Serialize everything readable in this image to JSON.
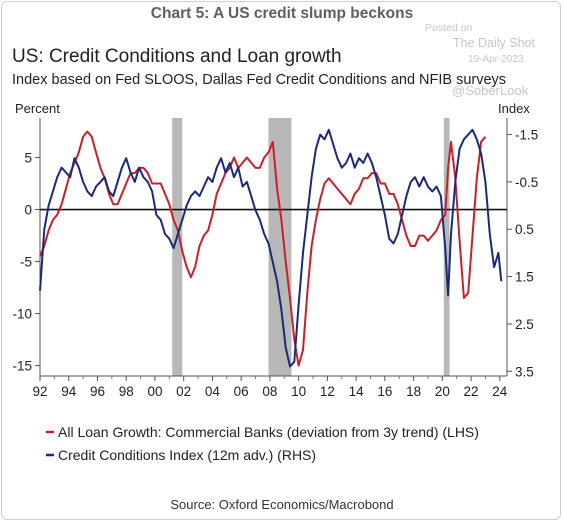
{
  "header": {
    "top_title": "Chart 5: A US credit slump beckons"
  },
  "watermark": {
    "line1": "Posted on",
    "line2": "The Daily Shot",
    "line3": "19-Apr-2023",
    "line4": "@SoberLook"
  },
  "source": "Source: Oxford Economics/Macrobond",
  "chart_data": {
    "type": "line",
    "title": "US: Credit Conditions and Loan growth",
    "subtitle": "Index based on Fed SLOOS, Dallas Fed Credit Conditions and NFIB surveys",
    "y_left_label": "Percent",
    "y_right_label": "Index",
    "x_range": [
      1992,
      2024.5
    ],
    "x_ticks": [
      "92",
      "94",
      "96",
      "98",
      "00",
      "02",
      "04",
      "06",
      "08",
      "10",
      "12",
      "14",
      "16",
      "18",
      "20",
      "22",
      "24"
    ],
    "y_left_range": [
      -16,
      8.8
    ],
    "y_left_ticks": [
      5,
      0,
      -5,
      -10,
      -15
    ],
    "y_right_range": [
      -1.85,
      3.6
    ],
    "y_right_ticks": [
      -1.5,
      -0.5,
      0.5,
      1.5,
      2.5,
      3.5
    ],
    "y_right_inverted": true,
    "recessions": [
      [
        2001.2,
        2001.9
      ],
      [
        2007.9,
        2009.5
      ],
      [
        2020.1,
        2020.5
      ]
    ],
    "legend_position": "bottom",
    "colors": {
      "red": "#c8202a",
      "blue": "#1b2a78",
      "recession": "#b8b8b8"
    },
    "series": [
      {
        "name": "All Loan Growth: Commercial Banks (deviation from 3y trend) (LHS)",
        "axis": "left",
        "color": "#c8202a",
        "x": [
          1992.0,
          1992.3,
          1992.6,
          1992.9,
          1993.2,
          1993.5,
          1993.8,
          1994.1,
          1994.4,
          1994.7,
          1995.0,
          1995.3,
          1995.6,
          1995.9,
          1996.2,
          1996.5,
          1996.8,
          1997.1,
          1997.4,
          1997.7,
          1998.0,
          1998.3,
          1998.6,
          1998.9,
          1999.2,
          1999.5,
          1999.8,
          2000.1,
          2000.4,
          2000.7,
          2001.0,
          2001.3,
          2001.6,
          2001.9,
          2002.2,
          2002.5,
          2002.8,
          2003.1,
          2003.4,
          2003.7,
          2004.0,
          2004.3,
          2004.6,
          2004.9,
          2005.2,
          2005.5,
          2005.8,
          2006.1,
          2006.4,
          2006.7,
          2007.0,
          2007.3,
          2007.6,
          2007.9,
          2008.2,
          2008.5,
          2008.8,
          2009.1,
          2009.4,
          2009.7,
          2010.0,
          2010.3,
          2010.6,
          2010.9,
          2011.2,
          2011.5,
          2011.8,
          2012.1,
          2012.4,
          2012.7,
          2013.0,
          2013.3,
          2013.6,
          2013.9,
          2014.2,
          2014.5,
          2014.8,
          2015.1,
          2015.4,
          2015.7,
          2016.0,
          2016.3,
          2016.6,
          2016.9,
          2017.2,
          2017.5,
          2017.8,
          2018.1,
          2018.4,
          2018.7,
          2019.0,
          2019.3,
          2019.6,
          2019.9,
          2020.2,
          2020.4,
          2020.6,
          2020.9,
          2021.2,
          2021.5,
          2021.8,
          2022.1,
          2022.4,
          2022.7,
          2023.0
        ],
        "y": [
          -4.5,
          -3.5,
          -2.0,
          -1.0,
          -0.5,
          0.5,
          2.0,
          3.5,
          4.5,
          5.5,
          7.0,
          7.5,
          7.0,
          5.5,
          4.0,
          3.0,
          1.5,
          0.5,
          0.5,
          1.5,
          2.5,
          3.5,
          3.5,
          4.0,
          4.0,
          3.5,
          2.5,
          2.5,
          2.5,
          1.5,
          0.5,
          -1.0,
          -2.0,
          -4.0,
          -5.5,
          -6.5,
          -5.5,
          -3.5,
          -2.5,
          -2.0,
          -0.5,
          1.5,
          2.5,
          3.5,
          4.0,
          5.0,
          4.0,
          4.5,
          5.0,
          4.5,
          4.0,
          4.0,
          5.0,
          5.5,
          6.5,
          2.0,
          -1.0,
          -5.0,
          -8.5,
          -12.5,
          -15.0,
          -13.5,
          -8.0,
          -3.5,
          -1.0,
          1.0,
          2.5,
          3.0,
          2.5,
          2.0,
          1.5,
          1.0,
          0.5,
          1.5,
          2.0,
          3.0,
          3.0,
          3.5,
          3.5,
          2.5,
          2.5,
          1.5,
          1.5,
          0.5,
          -1.0,
          -2.5,
          -3.5,
          -3.5,
          -2.5,
          -2.5,
          -3.0,
          -2.5,
          -2.0,
          -1.0,
          -0.5,
          4.0,
          6.5,
          3.0,
          -3.0,
          -8.5,
          -8.0,
          -2.5,
          3.0,
          6.5,
          7.0
        ]
      },
      {
        "name": "Credit Conditions Index (12m adv.) (RHS)",
        "axis": "right",
        "color": "#1b2a78",
        "x": [
          1992.0,
          1992.3,
          1992.6,
          1992.9,
          1993.2,
          1993.5,
          1993.8,
          1994.1,
          1994.4,
          1994.7,
          1995.0,
          1995.3,
          1995.6,
          1995.9,
          1996.2,
          1996.5,
          1996.8,
          1997.1,
          1997.4,
          1997.7,
          1998.0,
          1998.3,
          1998.6,
          1998.9,
          1999.2,
          1999.5,
          1999.8,
          2000.1,
          2000.4,
          2000.7,
          2001.0,
          2001.3,
          2001.6,
          2001.9,
          2002.2,
          2002.5,
          2002.8,
          2003.1,
          2003.4,
          2003.7,
          2004.0,
          2004.3,
          2004.6,
          2004.9,
          2005.2,
          2005.5,
          2005.8,
          2006.1,
          2006.4,
          2006.7,
          2007.0,
          2007.3,
          2007.6,
          2007.9,
          2008.2,
          2008.5,
          2008.8,
          2009.1,
          2009.4,
          2009.7,
          2010.0,
          2010.3,
          2010.6,
          2010.9,
          2011.2,
          2011.5,
          2011.8,
          2012.1,
          2012.4,
          2012.7,
          2013.0,
          2013.3,
          2013.6,
          2013.9,
          2014.2,
          2014.5,
          2014.8,
          2015.1,
          2015.4,
          2015.7,
          2016.0,
          2016.3,
          2016.6,
          2016.9,
          2017.2,
          2017.5,
          2017.8,
          2018.1,
          2018.4,
          2018.7,
          2019.0,
          2019.3,
          2019.6,
          2019.9,
          2020.2,
          2020.4,
          2020.6,
          2020.9,
          2021.2,
          2021.5,
          2021.8,
          2022.1,
          2022.4,
          2022.7,
          2023.0,
          2023.3,
          2023.6,
          2023.9,
          2024.1
        ],
        "y": [
          1.8,
          0.5,
          0.0,
          -0.3,
          -0.6,
          -0.8,
          -0.7,
          -0.6,
          -1.0,
          -0.8,
          -0.5,
          -0.3,
          -0.2,
          -0.4,
          -0.5,
          -0.6,
          -0.3,
          -0.2,
          -0.5,
          -0.8,
          -1.0,
          -0.7,
          -0.5,
          -0.8,
          -0.6,
          -0.5,
          -0.3,
          0.2,
          0.3,
          0.6,
          0.7,
          0.9,
          0.6,
          0.3,
          0.0,
          -0.2,
          -0.3,
          -0.2,
          -0.4,
          -0.6,
          -0.5,
          -0.8,
          -1.0,
          -0.7,
          -0.9,
          -0.6,
          -0.8,
          -0.4,
          -0.5,
          -0.2,
          0.1,
          0.3,
          0.6,
          0.8,
          1.2,
          1.6,
          2.2,
          3.0,
          3.4,
          3.3,
          2.1,
          1.0,
          0.2,
          -0.6,
          -1.2,
          -1.5,
          -1.4,
          -1.6,
          -1.3,
          -1.0,
          -0.8,
          -0.9,
          -1.1,
          -0.8,
          -1.0,
          -0.9,
          -1.1,
          -0.9,
          -0.6,
          -0.2,
          0.2,
          0.7,
          0.8,
          0.6,
          0.2,
          -0.2,
          -0.5,
          -0.6,
          -0.4,
          -0.6,
          -0.4,
          -0.3,
          -0.4,
          -0.2,
          0.9,
          1.9,
          0.6,
          -0.5,
          -1.2,
          -1.4,
          -1.5,
          -1.6,
          -1.4,
          -1.1,
          -0.5,
          0.6,
          1.3,
          1.0,
          1.6
        ]
      }
    ]
  }
}
